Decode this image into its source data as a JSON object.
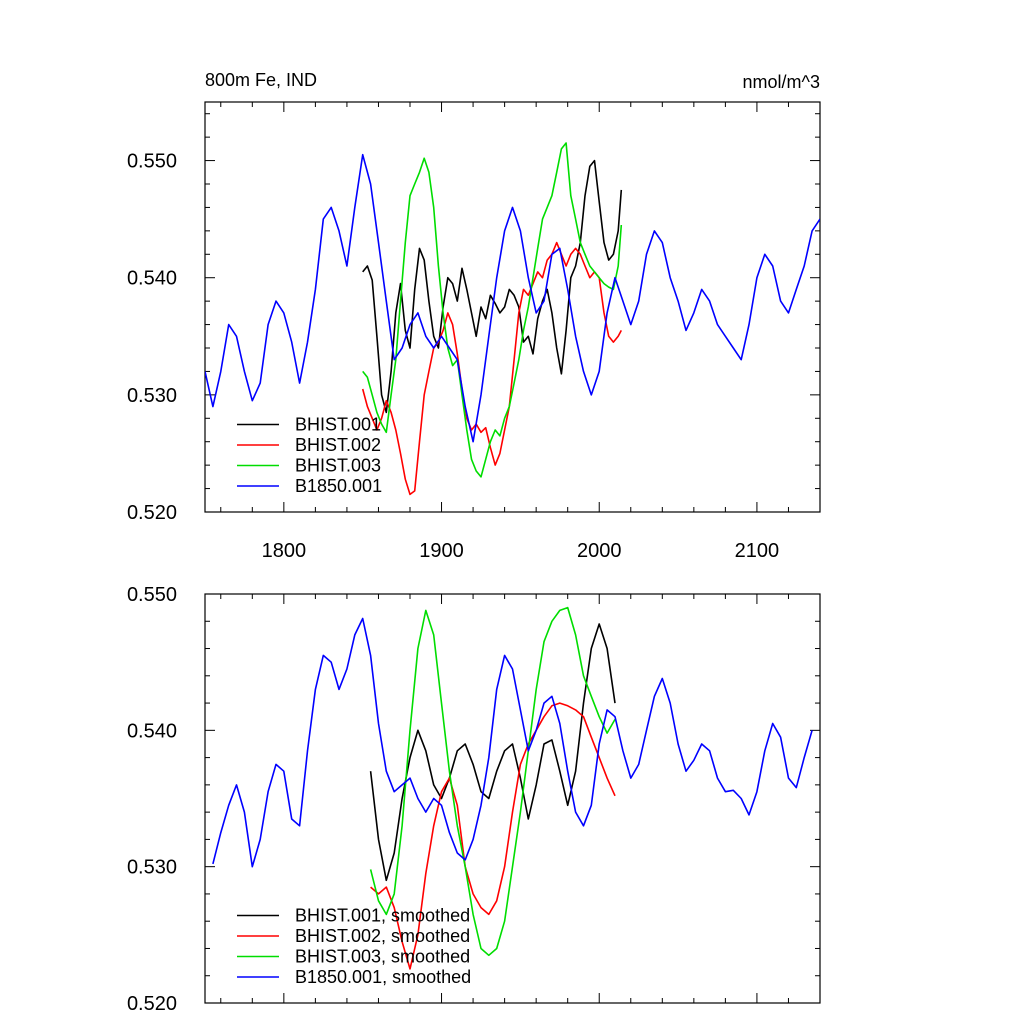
{
  "chart_data": [
    {
      "type": "line",
      "title": "800m Fe, IND",
      "units": "nmol/m^3",
      "xlim": [
        1750,
        2140
      ],
      "ylim": [
        0.52,
        0.555
      ],
      "x_ticks": [
        1800,
        1900,
        2000,
        2100
      ],
      "x_tick_labels": [
        "1800",
        "1900",
        "2000",
        "2100"
      ],
      "y_ticks": [
        0.52,
        0.53,
        0.54,
        0.55
      ],
      "y_tick_labels": [
        "0.520",
        "0.530",
        "0.540",
        "0.550"
      ],
      "legend_position": "bottom-left",
      "series": [
        {
          "name": "BHIST.001",
          "color": "#000000",
          "x": [
            1850,
            1853,
            1856,
            1859,
            1862,
            1865,
            1868,
            1871,
            1874,
            1877,
            1880,
            1883,
            1886,
            1889,
            1892,
            1895,
            1898,
            1901,
            1904,
            1907,
            1910,
            1913,
            1916,
            1919,
            1922,
            1925,
            1928,
            1931,
            1934,
            1937,
            1940,
            1943,
            1946,
            1949,
            1952,
            1955,
            1958,
            1961,
            1964,
            1967,
            1970,
            1973,
            1976,
            1979,
            1982,
            1985,
            1988,
            1991,
            1994,
            1997,
            2000,
            2003,
            2006,
            2009,
            2012,
            2014
          ],
          "y": [
            0.5405,
            0.541,
            0.5398,
            0.535,
            0.53,
            0.5285,
            0.532,
            0.537,
            0.5395,
            0.5355,
            0.534,
            0.539,
            0.5425,
            0.5415,
            0.538,
            0.535,
            0.534,
            0.5375,
            0.54,
            0.5395,
            0.538,
            0.5408,
            0.539,
            0.537,
            0.535,
            0.5375,
            0.5365,
            0.5385,
            0.5378,
            0.537,
            0.5375,
            0.539,
            0.5385,
            0.5375,
            0.5345,
            0.535,
            0.5335,
            0.5365,
            0.538,
            0.539,
            0.537,
            0.534,
            0.5318,
            0.5355,
            0.54,
            0.541,
            0.543,
            0.547,
            0.5495,
            0.55,
            0.5465,
            0.543,
            0.5415,
            0.542,
            0.544,
            0.5475
          ]
        },
        {
          "name": "BHIST.002",
          "color": "#ff0000",
          "x": [
            1850,
            1853,
            1856,
            1859,
            1862,
            1865,
            1868,
            1871,
            1874,
            1877,
            1880,
            1883,
            1886,
            1889,
            1892,
            1895,
            1898,
            1901,
            1904,
            1907,
            1910,
            1913,
            1916,
            1919,
            1922,
            1925,
            1928,
            1931,
            1934,
            1937,
            1940,
            1943,
            1946,
            1949,
            1952,
            1955,
            1958,
            1961,
            1964,
            1967,
            1970,
            1973,
            1976,
            1979,
            1982,
            1985,
            1988,
            1991,
            1994,
            1997,
            2000,
            2003,
            2006,
            2009,
            2012,
            2014
          ],
          "y": [
            0.5305,
            0.529,
            0.528,
            0.527,
            0.528,
            0.5295,
            0.5285,
            0.527,
            0.525,
            0.5228,
            0.5215,
            0.5218,
            0.526,
            0.53,
            0.532,
            0.534,
            0.5345,
            0.5355,
            0.537,
            0.536,
            0.5335,
            0.5305,
            0.528,
            0.527,
            0.5275,
            0.5268,
            0.5272,
            0.5255,
            0.524,
            0.525,
            0.527,
            0.529,
            0.533,
            0.537,
            0.539,
            0.5385,
            0.5395,
            0.5405,
            0.54,
            0.5415,
            0.542,
            0.543,
            0.542,
            0.541,
            0.542,
            0.5425,
            0.542,
            0.541,
            0.54,
            0.5405,
            0.54,
            0.537,
            0.535,
            0.5345,
            0.535,
            0.5355
          ]
        },
        {
          "name": "BHIST.003",
          "color": "#00dd00",
          "x": [
            1850,
            1853,
            1856,
            1859,
            1862,
            1865,
            1868,
            1871,
            1874,
            1877,
            1880,
            1883,
            1886,
            1889,
            1892,
            1895,
            1898,
            1901,
            1904,
            1907,
            1910,
            1913,
            1916,
            1919,
            1922,
            1925,
            1928,
            1931,
            1934,
            1937,
            1940,
            1943,
            1946,
            1949,
            1952,
            1955,
            1958,
            1961,
            1964,
            1967,
            1970,
            1973,
            1976,
            1979,
            1982,
            1985,
            1988,
            1991,
            1994,
            1997,
            2000,
            2003,
            2006,
            2009,
            2012,
            2014
          ],
          "y": [
            0.532,
            0.5315,
            0.53,
            0.5285,
            0.5275,
            0.5268,
            0.53,
            0.533,
            0.538,
            0.543,
            0.547,
            0.548,
            0.549,
            0.5502,
            0.549,
            0.546,
            0.541,
            0.537,
            0.534,
            0.5325,
            0.533,
            0.53,
            0.527,
            0.5245,
            0.5235,
            0.523,
            0.5245,
            0.526,
            0.527,
            0.5265,
            0.528,
            0.529,
            0.531,
            0.533,
            0.5355,
            0.5375,
            0.54,
            0.5425,
            0.545,
            0.546,
            0.547,
            0.549,
            0.551,
            0.5515,
            0.547,
            0.545,
            0.543,
            0.542,
            0.541,
            0.5405,
            0.54,
            0.5395,
            0.5392,
            0.539,
            0.541,
            0.5445
          ]
        },
        {
          "name": "B1850.001",
          "color": "#0000ff",
          "x": [
            1750,
            1755,
            1760,
            1765,
            1770,
            1775,
            1780,
            1785,
            1790,
            1795,
            1800,
            1805,
            1810,
            1815,
            1820,
            1825,
            1830,
            1835,
            1840,
            1845,
            1850,
            1855,
            1860,
            1865,
            1870,
            1875,
            1880,
            1885,
            1890,
            1895,
            1900,
            1905,
            1910,
            1915,
            1920,
            1925,
            1930,
            1935,
            1940,
            1945,
            1950,
            1955,
            1960,
            1965,
            1970,
            1975,
            1980,
            1985,
            1990,
            1995,
            2000,
            2005,
            2010,
            2015,
            2020,
            2025,
            2030,
            2035,
            2040,
            2045,
            2050,
            2055,
            2060,
            2065,
            2070,
            2075,
            2080,
            2085,
            2090,
            2095,
            2100,
            2105,
            2110,
            2115,
            2120,
            2125,
            2130,
            2135,
            2140
          ],
          "y": [
            0.532,
            0.529,
            0.532,
            0.536,
            0.535,
            0.532,
            0.5295,
            0.531,
            0.536,
            0.538,
            0.537,
            0.5345,
            0.531,
            0.5345,
            0.539,
            0.545,
            0.546,
            0.544,
            0.541,
            0.546,
            0.5505,
            0.548,
            0.543,
            0.538,
            0.533,
            0.534,
            0.536,
            0.537,
            0.535,
            0.534,
            0.535,
            0.534,
            0.533,
            0.529,
            0.526,
            0.53,
            0.535,
            0.54,
            0.544,
            0.546,
            0.544,
            0.54,
            0.537,
            0.538,
            0.542,
            0.5425,
            0.539,
            0.535,
            0.532,
            0.53,
            0.532,
            0.537,
            0.54,
            0.538,
            0.536,
            0.538,
            0.542,
            0.544,
            0.543,
            0.54,
            0.538,
            0.5355,
            0.537,
            0.539,
            0.538,
            0.536,
            0.535,
            0.534,
            0.533,
            0.536,
            0.54,
            0.542,
            0.541,
            0.538,
            0.537,
            0.539,
            0.541,
            0.544,
            0.545
          ]
        }
      ]
    },
    {
      "type": "line",
      "xlim": [
        1750,
        2140
      ],
      "ylim": [
        0.52,
        0.55
      ],
      "y_ticks": [
        0.52,
        0.53,
        0.54,
        0.55
      ],
      "y_tick_labels": [
        "0.520",
        "0.530",
        "0.540",
        "0.550"
      ],
      "legend_position": "bottom-left",
      "series": [
        {
          "name": "BHIST.001, smoothed",
          "color": "#000000",
          "x": [
            1855,
            1860,
            1865,
            1870,
            1875,
            1880,
            1885,
            1890,
            1895,
            1900,
            1905,
            1910,
            1915,
            1920,
            1925,
            1930,
            1935,
            1940,
            1945,
            1950,
            1955,
            1960,
            1965,
            1970,
            1975,
            1980,
            1985,
            1990,
            1995,
            2000,
            2005,
            2010
          ],
          "y": [
            0.537,
            0.532,
            0.529,
            0.531,
            0.535,
            0.538,
            0.54,
            0.5385,
            0.536,
            0.535,
            0.5365,
            0.5385,
            0.539,
            0.5375,
            0.5355,
            0.535,
            0.537,
            0.5385,
            0.539,
            0.5365,
            0.5335,
            0.536,
            0.539,
            0.5393,
            0.537,
            0.5345,
            0.537,
            0.542,
            0.546,
            0.5478,
            0.546,
            0.542
          ]
        },
        {
          "name": "BHIST.002, smoothed",
          "color": "#ff0000",
          "x": [
            1855,
            1860,
            1865,
            1870,
            1875,
            1880,
            1885,
            1890,
            1895,
            1900,
            1905,
            1910,
            1915,
            1920,
            1925,
            1930,
            1935,
            1940,
            1945,
            1950,
            1955,
            1960,
            1965,
            1970,
            1975,
            1980,
            1985,
            1990,
            1995,
            2000,
            2005,
            2010
          ],
          "y": [
            0.5285,
            0.528,
            0.5285,
            0.527,
            0.5245,
            0.5225,
            0.525,
            0.5295,
            0.533,
            0.5355,
            0.5365,
            0.5345,
            0.53,
            0.528,
            0.527,
            0.5265,
            0.5275,
            0.53,
            0.534,
            0.5375,
            0.539,
            0.54,
            0.541,
            0.5418,
            0.542,
            0.5418,
            0.5415,
            0.541,
            0.5395,
            0.538,
            0.5365,
            0.5352
          ]
        },
        {
          "name": "BHIST.003, smoothed",
          "color": "#00dd00",
          "x": [
            1855,
            1860,
            1865,
            1870,
            1875,
            1880,
            1885,
            1890,
            1895,
            1900,
            1905,
            1910,
            1915,
            1920,
            1925,
            1930,
            1935,
            1940,
            1945,
            1950,
            1955,
            1960,
            1965,
            1970,
            1975,
            1980,
            1985,
            1990,
            1995,
            2000,
            2005,
            2010
          ],
          "y": [
            0.5298,
            0.5275,
            0.5265,
            0.528,
            0.533,
            0.54,
            0.546,
            0.5488,
            0.547,
            0.542,
            0.537,
            0.533,
            0.53,
            0.5265,
            0.524,
            0.5235,
            0.524,
            0.526,
            0.53,
            0.534,
            0.5385,
            0.543,
            0.5465,
            0.548,
            0.5488,
            0.549,
            0.547,
            0.544,
            0.5425,
            0.541,
            0.5398,
            0.5408
          ]
        },
        {
          "name": "B1850.001, smoothed",
          "color": "#0000ff",
          "x": [
            1755,
            1760,
            1765,
            1770,
            1775,
            1780,
            1785,
            1790,
            1795,
            1800,
            1805,
            1810,
            1815,
            1820,
            1825,
            1830,
            1835,
            1840,
            1845,
            1850,
            1855,
            1860,
            1865,
            1870,
            1875,
            1880,
            1885,
            1890,
            1895,
            1900,
            1905,
            1910,
            1915,
            1920,
            1925,
            1930,
            1935,
            1940,
            1945,
            1950,
            1955,
            1960,
            1965,
            1970,
            1975,
            1980,
            1985,
            1990,
            1995,
            2000,
            2005,
            2010,
            2015,
            2020,
            2025,
            2030,
            2035,
            2040,
            2045,
            2050,
            2055,
            2060,
            2065,
            2070,
            2075,
            2080,
            2085,
            2090,
            2095,
            2100,
            2105,
            2110,
            2115,
            2120,
            2125,
            2130,
            2135
          ],
          "y": [
            0.5302,
            0.5325,
            0.5345,
            0.536,
            0.534,
            0.53,
            0.532,
            0.5355,
            0.5375,
            0.537,
            0.5335,
            0.533,
            0.5385,
            0.543,
            0.5455,
            0.545,
            0.543,
            0.5445,
            0.547,
            0.5482,
            0.5455,
            0.5405,
            0.537,
            0.5355,
            0.536,
            0.5365,
            0.535,
            0.534,
            0.535,
            0.5345,
            0.5325,
            0.531,
            0.5305,
            0.532,
            0.5345,
            0.538,
            0.543,
            0.5455,
            0.5445,
            0.5415,
            0.5385,
            0.54,
            0.542,
            0.5425,
            0.5405,
            0.537,
            0.534,
            0.533,
            0.5345,
            0.539,
            0.5415,
            0.541,
            0.5385,
            0.5365,
            0.5375,
            0.54,
            0.5425,
            0.5438,
            0.542,
            0.539,
            0.537,
            0.5378,
            0.539,
            0.5385,
            0.5365,
            0.5355,
            0.5356,
            0.535,
            0.5338,
            0.5355,
            0.5385,
            0.5405,
            0.5395,
            0.5365,
            0.5358,
            0.538,
            0.54
          ]
        }
      ]
    }
  ]
}
